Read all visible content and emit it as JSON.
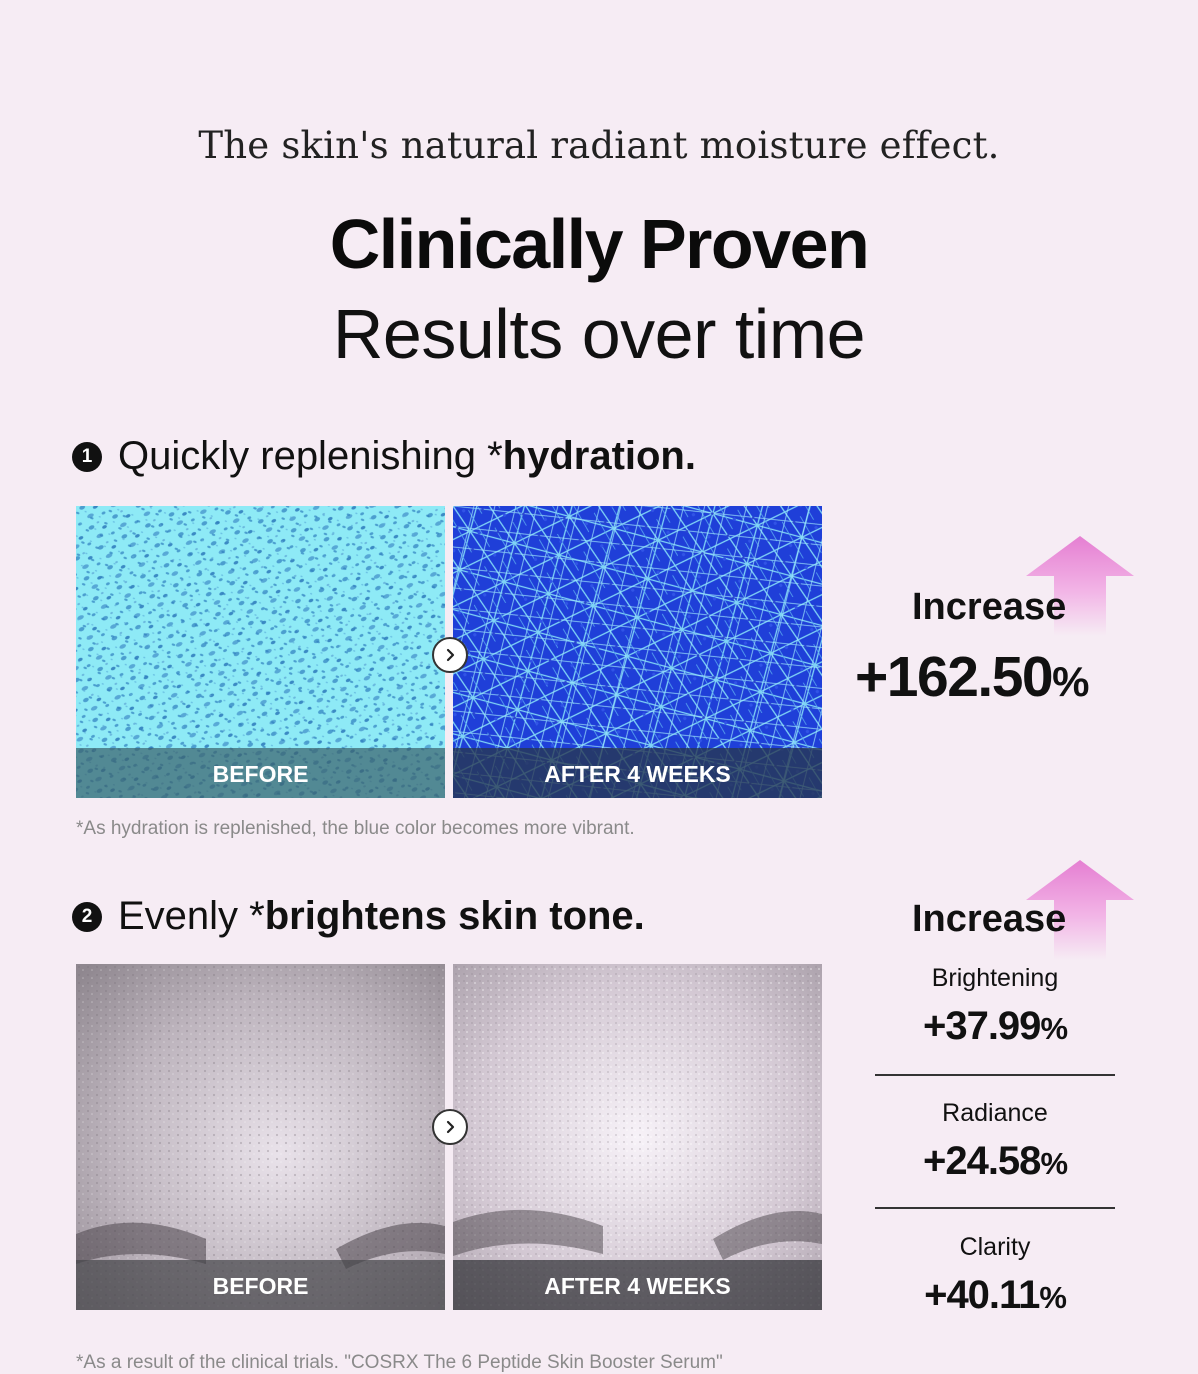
{
  "header": {
    "subtitle": "The skin's natural radiant moisture effect.",
    "title_bold": "Clinically Proven",
    "title_light": "Results over time"
  },
  "section1": {
    "number": "1",
    "heading_plain": "Quickly replenishing *",
    "heading_bold": "hydration.",
    "before_label": "BEFORE",
    "after_label": "AFTER 4 WEEKS",
    "footnote": "*As hydration is replenished, the blue color becomes more vibrant.",
    "increase_label": "Increase",
    "increase_value": "+162.50",
    "percent_symbol": "%"
  },
  "section2": {
    "number": "2",
    "heading_plain": "Evenly *",
    "heading_bold": "brightens skin tone.",
    "before_label": "BEFORE",
    "after_label": "AFTER 4 WEEKS",
    "increase_label": "Increase",
    "metrics": [
      {
        "name": "Brightening",
        "value": "+37.99",
        "symbol": "%"
      },
      {
        "name": "Radiance",
        "value": "+24.58",
        "symbol": "%"
      },
      {
        "name": "Clarity",
        "value": "+40.11",
        "symbol": "%"
      }
    ],
    "footnote": "*As a result of the clinical trials. \"COSRX The 6 Peptide Skin Booster Serum\""
  },
  "colors": {
    "background": "#f6ecf4",
    "arrow_pink": "#e985d6",
    "hydration_before": "#8eeaf6",
    "hydration_after": "#1f3fd8"
  },
  "icons": {
    "next_arrow": "chevron-right-icon",
    "increase_arrow": "up-arrow-icon"
  }
}
